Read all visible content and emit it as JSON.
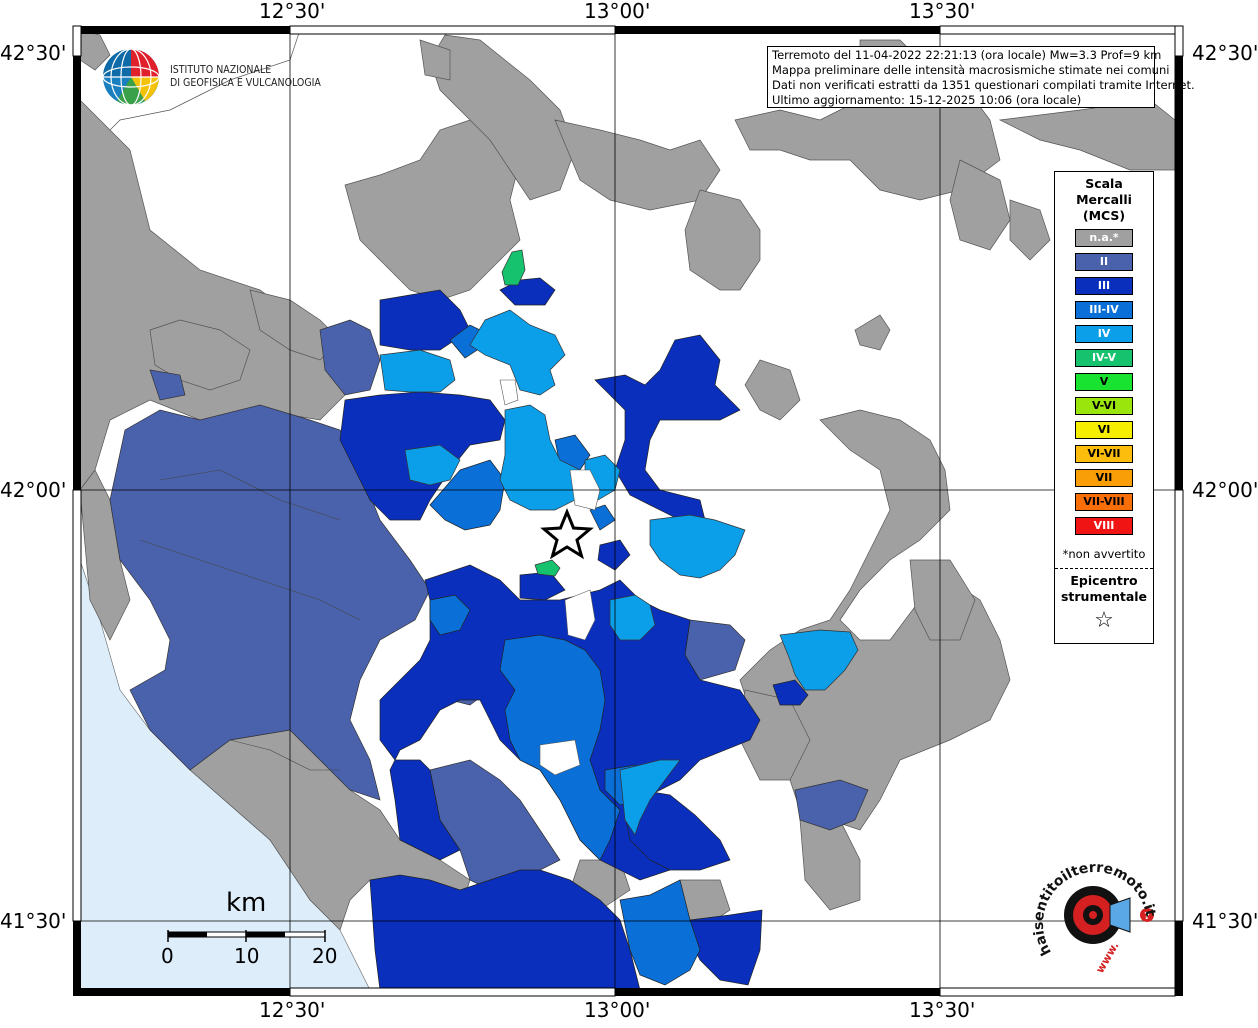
{
  "header": {
    "lines": [
      "Terremoto del 11-04-2022 22:21:13 (ora locale) Mw=3.3 Prof=9 km",
      "Mappa preliminare delle intensità macrosismiche stimate nei comuni",
      "Dati non verificati estratti da 1351 questionari compilati tramite Internet.",
      "Ultimo aggiornamento: 15-12-2025 10:06 (ora locale)"
    ]
  },
  "logo": {
    "line1": "ISTITUTO NAZIONALE",
    "line2": "DI GEOFISICA E VULCANOLOGIA"
  },
  "axes": {
    "lon_labels": [
      "12°30'",
      "13°00'",
      "13°30'"
    ],
    "lat_labels": [
      "42°30'",
      "42°00'",
      "41°30'"
    ]
  },
  "legend": {
    "title": [
      "Scala",
      "Mercalli",
      "(MCS)"
    ],
    "classes": [
      {
        "label": "n.a.*",
        "color": "#a0a0a0",
        "text": "#ffffff"
      },
      {
        "label": "II",
        "color": "#4a62ac",
        "text": "#ffffff"
      },
      {
        "label": "III",
        "color": "#0a2fbd",
        "text": "#ffffff"
      },
      {
        "label": "III-IV",
        "color": "#0a6fd6",
        "text": "#ffffff"
      },
      {
        "label": "IV",
        "color": "#0a9fe8",
        "text": "#ffffff"
      },
      {
        "label": "IV-V",
        "color": "#16c26e",
        "text": "#ffffff"
      },
      {
        "label": "V",
        "color": "#17e330",
        "text": "#000000"
      },
      {
        "label": "V-VI",
        "color": "#9ae60c",
        "text": "#000000"
      },
      {
        "label": "VI",
        "color": "#f5ee00",
        "text": "#000000"
      },
      {
        "label": "VI-VII",
        "color": "#fcbd0c",
        "text": "#000000"
      },
      {
        "label": "VII",
        "color": "#fa9e08",
        "text": "#000000"
      },
      {
        "label": "VII-VIII",
        "color": "#fa6e08",
        "text": "#000000"
      },
      {
        "label": "VIII",
        "color": "#f01414",
        "text": "#ffffff"
      }
    ],
    "note": "*non avvertito",
    "epicenter_label": [
      "Epicentro",
      "strumentale"
    ],
    "epicenter_symbol": "☆"
  },
  "scale_bar": {
    "unit": "km",
    "ticks": [
      "0",
      "10",
      "20"
    ]
  },
  "brand": {
    "text": "haisentitoilterremoto.it",
    "www": "www."
  },
  "colors": {
    "sea": "#ddeefa",
    "land_na": "#a0a0a0",
    "ii": "#4a62ac",
    "iii": "#0a2fbd",
    "iii_iv": "#0a6fd6",
    "iv": "#0a9fe8",
    "iv_v": "#16c26e"
  }
}
